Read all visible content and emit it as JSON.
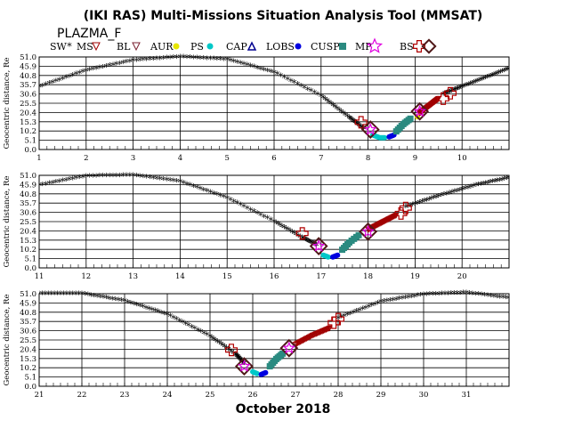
{
  "title": "(IKI RAS) Multi-Missions Situation Analysis Tool (MMSAT)",
  "mission": "PLAZMA_F",
  "footer_label": "October 2018",
  "legend": [
    {
      "label": "SW",
      "marker": "star",
      "color": "#e00000"
    },
    {
      "label": "MS",
      "marker": "triangle-down",
      "color": "#a00000"
    },
    {
      "label": "BL",
      "marker": "triangle-down",
      "color": "#7a2030"
    },
    {
      "label": "AUR",
      "marker": "circle",
      "color": "#e6e600"
    },
    {
      "label": "PS",
      "marker": "circle",
      "color": "#00c8c8"
    },
    {
      "label": "CAP",
      "marker": "triangle-up",
      "color": "#000090"
    },
    {
      "label": "LOBS",
      "marker": "circle",
      "color": "#0000e0"
    },
    {
      "label": "CUSP",
      "marker": "square",
      "color": "#2a8a80"
    },
    {
      "label": "MP",
      "marker": "star-outline",
      "color": "#e000e0"
    },
    {
      "label": "BS",
      "marker": "cross-outline",
      "color": "#b00000"
    },
    {
      "label": "",
      "marker": "diamond-outline",
      "color": "#501818"
    }
  ],
  "chart_data": [
    {
      "type": "scatter",
      "title": "",
      "ylabel": "Geocentric distance, Re",
      "xlabel": "",
      "xlim": [
        1,
        11
      ],
      "ylim": [
        0,
        51
      ],
      "xticks": [
        "1",
        "2",
        "3",
        "4",
        "5",
        "6",
        "7",
        "8",
        "9",
        "10"
      ],
      "yticks": [
        "0.0",
        "5.1",
        "10.2",
        "15.3",
        "20.4",
        "25.5",
        "30.6",
        "35.7",
        "40.8",
        "45.9",
        "51.0"
      ],
      "grid": true,
      "series": [
        {
          "name": "SW",
          "x": [
            1.0,
            2.0,
            3.0,
            4.0,
            5.0,
            6.0,
            7.0,
            7.6,
            7.9
          ],
          "y": [
            34,
            43,
            48.5,
            50.5,
            49,
            42,
            29,
            17,
            11
          ]
        },
        {
          "name": "PS",
          "x": [
            8.1,
            8.25,
            8.35
          ],
          "y": [
            8,
            6.5,
            6.5
          ]
        },
        {
          "name": "LOBS",
          "x": [
            8.45,
            8.55
          ],
          "y": [
            7,
            8
          ]
        },
        {
          "name": "CUSP",
          "x": [
            8.6,
            8.75,
            8.9
          ],
          "y": [
            10,
            14,
            17
          ]
        },
        {
          "name": "AUR",
          "x": [
            9.05
          ],
          "y": [
            18
          ]
        },
        {
          "name": "MS",
          "x": [
            9.1,
            9.25,
            9.4,
            9.5
          ],
          "y": [
            20,
            23,
            26,
            28
          ]
        },
        {
          "name": "SW",
          "x": [
            9.6,
            10.0,
            10.5,
            11.0
          ],
          "y": [
            30,
            34,
            39,
            44
          ]
        },
        {
          "name": "BS",
          "x": [
            7.85,
            9.6,
            9.75
          ],
          "y": [
            15,
            28,
            31
          ]
        },
        {
          "name": "MP",
          "x": [
            8.05,
            9.1
          ],
          "y": [
            11,
            21
          ]
        }
      ]
    },
    {
      "type": "scatter",
      "title": "",
      "ylabel": "Geocentric distance, Re",
      "xlabel": "",
      "xlim": [
        11,
        21
      ],
      "ylim": [
        0,
        51
      ],
      "xticks": [
        "11",
        "12",
        "13",
        "14",
        "15",
        "16",
        "17",
        "18",
        "19",
        "20"
      ],
      "yticks": [
        "0.0",
        "5.1",
        "10.2",
        "15.3",
        "20.4",
        "25.5",
        "30.6",
        "35.7",
        "40.8",
        "45.9",
        "51.0"
      ],
      "grid": true,
      "series": [
        {
          "name": "SW",
          "x": [
            11.0,
            12.0,
            13.0,
            14.0,
            15.0,
            16.0,
            16.6,
            16.9
          ],
          "y": [
            45,
            50,
            50.5,
            47,
            38,
            25,
            16,
            12
          ]
        },
        {
          "name": "PS",
          "x": [
            17.05,
            17.15
          ],
          "y": [
            7,
            6
          ]
        },
        {
          "name": "LOBS",
          "x": [
            17.25,
            17.35
          ],
          "y": [
            6,
            7
          ]
        },
        {
          "name": "CUSP",
          "x": [
            17.45,
            17.6,
            17.8
          ],
          "y": [
            10,
            14,
            18
          ]
        },
        {
          "name": "MS",
          "x": [
            18.0,
            18.3,
            18.6
          ],
          "y": [
            21,
            25,
            29
          ]
        },
        {
          "name": "SW",
          "x": [
            18.8,
            19.5,
            20.3,
            21.0
          ],
          "y": [
            33,
            39,
            45,
            49
          ]
        },
        {
          "name": "BS",
          "x": [
            16.6,
            18.7,
            18.8
          ],
          "y": [
            19,
            30,
            33
          ]
        },
        {
          "name": "MP",
          "x": [
            16.95,
            18.0
          ],
          "y": [
            12,
            20
          ]
        }
      ]
    },
    {
      "type": "scatter",
      "title": "",
      "ylabel": "Geocentric distance, Re",
      "xlabel": "",
      "xlim": [
        21,
        32
      ],
      "ylim": [
        0,
        51
      ],
      "xticks": [
        "21",
        "22",
        "23",
        "24",
        "25",
        "26",
        "27",
        "28",
        "29",
        "30",
        "31"
      ],
      "yticks": [
        "0.0",
        "5.1",
        "10.2",
        "15.3",
        "20.4",
        "25.5",
        "30.6",
        "35.7",
        "40.8",
        "45.9",
        "51.0"
      ],
      "grid": true,
      "series": [
        {
          "name": "SW",
          "x": [
            21.0,
            22.0,
            23.0,
            24.0,
            25.0,
            25.6,
            25.8
          ],
          "y": [
            50.5,
            50.5,
            46.5,
            39,
            27,
            17,
            12
          ]
        },
        {
          "name": "PS",
          "x": [
            26.0,
            26.1
          ],
          "y": [
            8,
            7
          ]
        },
        {
          "name": "LOBS",
          "x": [
            26.2,
            26.3
          ],
          "y": [
            6.5,
            7.5
          ]
        },
        {
          "name": "CUSP",
          "x": [
            26.4,
            26.55,
            26.7
          ],
          "y": [
            11,
            15,
            18
          ]
        },
        {
          "name": "MS",
          "x": [
            27.0,
            27.4,
            27.8
          ],
          "y": [
            23,
            28,
            32
          ]
        },
        {
          "name": "SW",
          "x": [
            28.0,
            29.0,
            30.0,
            31.0,
            32.0
          ],
          "y": [
            37,
            46,
            50,
            51,
            48
          ]
        },
        {
          "name": "BS",
          "x": [
            25.5,
            27.9,
            28.0
          ],
          "y": [
            20,
            35,
            37
          ]
        },
        {
          "name": "MP",
          "x": [
            25.8,
            26.85
          ],
          "y": [
            11,
            21
          ]
        }
      ]
    }
  ]
}
